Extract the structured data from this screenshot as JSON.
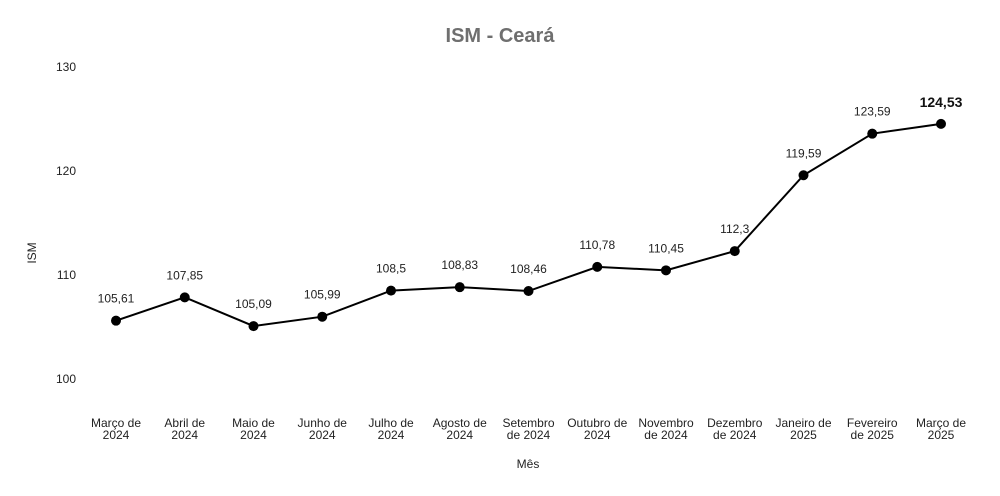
{
  "chart_data": {
    "type": "line",
    "title": "ISM - Ceará",
    "xlabel": "Mês",
    "ylabel": "ISM",
    "ylim": [
      100,
      130
    ],
    "yticks": [
      "100",
      "110",
      "120",
      "130"
    ],
    "grid": false,
    "categories": [
      [
        "Março de",
        "2024"
      ],
      [
        "Abril de",
        "2024"
      ],
      [
        "Maio de",
        "2024"
      ],
      [
        "Junho de",
        "2024"
      ],
      [
        "Julho de",
        "2024"
      ],
      [
        "Agosto de",
        "2024"
      ],
      [
        "Setembro",
        "de 2024"
      ],
      [
        "Outubro de",
        "2024"
      ],
      [
        "Novembro",
        "de 2024"
      ],
      [
        "Dezembro",
        "de 2024"
      ],
      [
        "Janeiro de",
        "2025"
      ],
      [
        "Fevereiro",
        "de 2025"
      ],
      [
        "Março de",
        "2025"
      ]
    ],
    "series": [
      {
        "values": [
          105.61,
          107.85,
          105.09,
          105.99,
          108.5,
          108.83,
          108.46,
          110.78,
          110.45,
          112.3,
          119.59,
          123.59,
          124.53
        ],
        "labels": [
          "105,61",
          "107,85",
          "105,09",
          "105,99",
          "108,5",
          "108,83",
          "108,46",
          "110,78",
          "110,45",
          "112,3",
          "119,59",
          "123,59",
          "124,53"
        ],
        "color": "#000000"
      }
    ]
  }
}
